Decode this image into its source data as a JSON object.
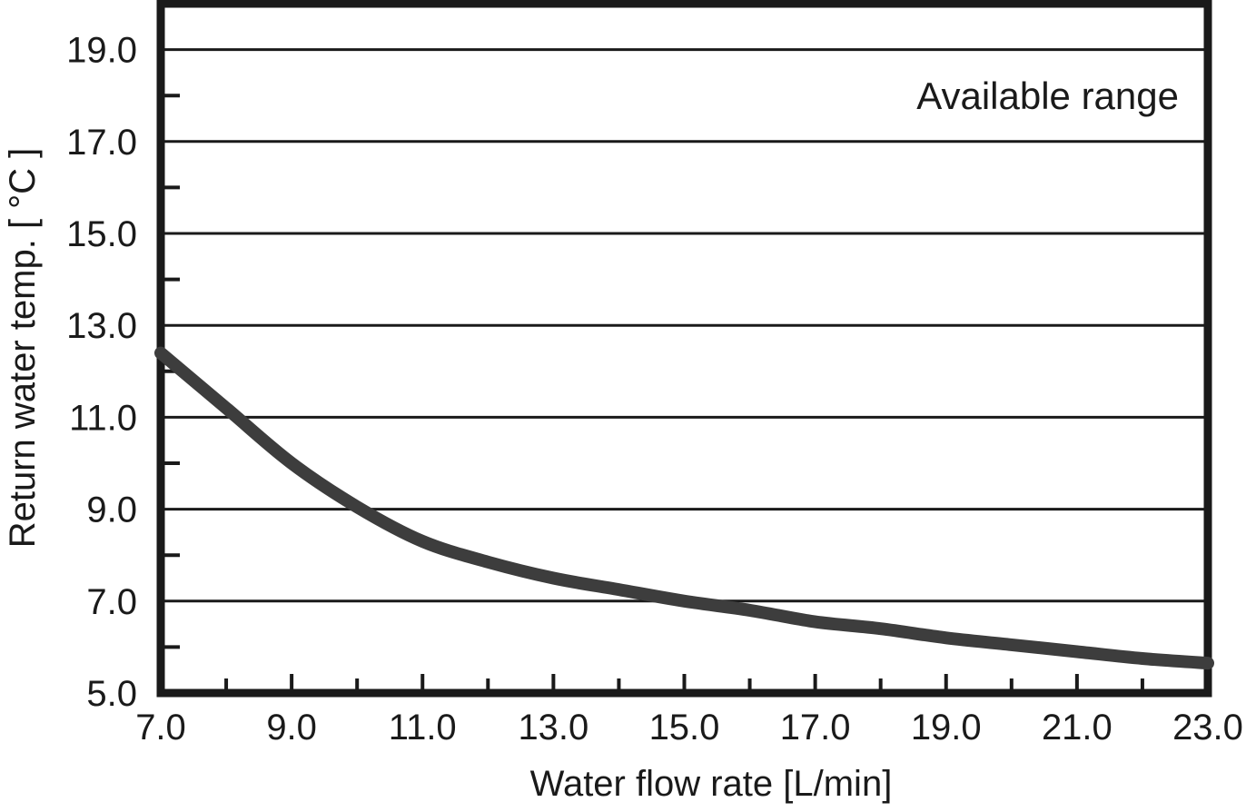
{
  "chart_data": {
    "type": "line",
    "title": "",
    "xlabel": "Water flow rate [L/min]",
    "ylabel": "Return water temp. [ °C ]",
    "annotation": "Available range",
    "xlim": [
      7.0,
      23.0
    ],
    "ylim": [
      5.0,
      20.0
    ],
    "grid": "horizontal-major-on",
    "legend_position": "none",
    "x_major_ticks": [
      7.0,
      9.0,
      11.0,
      13.0,
      15.0,
      17.0,
      19.0,
      21.0,
      23.0
    ],
    "x_major_tick_labels": [
      "7.0",
      "9.0",
      "11.0",
      "13.0",
      "15.0",
      "17.0",
      "19.0",
      "21.0",
      "23.0"
    ],
    "x_minor_ticks": [
      8.0,
      10.0,
      12.0,
      14.0,
      16.0,
      18.0,
      20.0,
      22.0
    ],
    "y_major_ticks": [
      5.0,
      7.0,
      9.0,
      11.0,
      13.0,
      15.0,
      17.0,
      19.0
    ],
    "y_major_tick_labels": [
      "5.0",
      "7.0",
      "9.0",
      "11.0",
      "13.0",
      "15.0",
      "17.0",
      "19.0"
    ],
    "y_minor_ticks": [
      6.0,
      8.0,
      10.0,
      12.0,
      14.0,
      16.0,
      18.0
    ],
    "y_gridlines": [
      7.0,
      9.0,
      11.0,
      13.0,
      15.0,
      17.0,
      19.0
    ],
    "series": [
      {
        "name": "return-water-temp",
        "x": [
          7.0,
          8.0,
          9.0,
          10.0,
          11.0,
          12.0,
          13.0,
          14.0,
          15.0,
          16.0,
          17.0,
          18.0,
          19.0,
          20.0,
          21.0,
          22.0,
          23.0
        ],
        "y": [
          12.4,
          11.2,
          10.0,
          9.05,
          8.3,
          7.85,
          7.5,
          7.25,
          7.0,
          6.8,
          6.55,
          6.4,
          6.2,
          6.05,
          5.9,
          5.75,
          5.65
        ],
        "color": "#3d3d3d",
        "stroke_width": 14
      }
    ],
    "colors": {
      "axis": "#1a1a1a",
      "grid": "#1a1a1a",
      "text": "#1a1a1a",
      "background": "#ffffff"
    }
  }
}
